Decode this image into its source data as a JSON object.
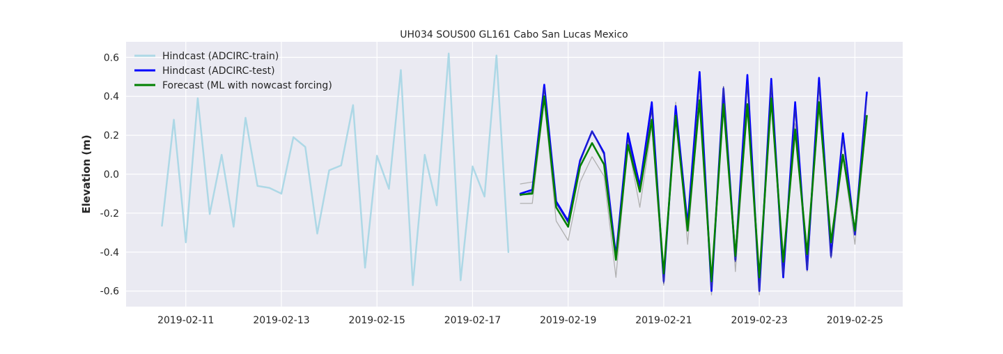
{
  "chart_data": {
    "type": "line",
    "title": "UH034 SOUS00 GL161 Cabo San Lucas Mexico",
    "xlabel": "",
    "ylabel": "Elevation (m)",
    "xlim": [
      "2019-02-09T18:00",
      "2019-02-26T00:00"
    ],
    "ylim": [
      -0.68,
      0.68
    ],
    "grid": true,
    "legend_position": "top-left",
    "x_ticks": [
      "2019-02-11",
      "2019-02-13",
      "2019-02-15",
      "2019-02-17",
      "2019-02-19",
      "2019-02-21",
      "2019-02-23",
      "2019-02-25"
    ],
    "y_ticks": [
      -0.6,
      -0.4,
      -0.2,
      0.0,
      0.2,
      0.4,
      0.6
    ],
    "series": [
      {
        "name": "",
        "color": "#b0b0b0",
        "kind": "observed",
        "x": [
          "2019-02-18T00:00",
          "2019-02-18T06:00",
          "2019-02-18T12:00",
          "2019-02-18T18:00",
          "2019-02-19T00:00",
          "2019-02-19T06:00",
          "2019-02-19T12:00",
          "2019-02-19T18:00",
          "2019-02-20T00:00",
          "2019-02-20T06:00",
          "2019-02-20T12:00",
          "2019-02-20T18:00",
          "2019-02-21T00:00",
          "2019-02-21T06:00",
          "2019-02-21T12:00",
          "2019-02-21T18:00",
          "2019-02-22T00:00",
          "2019-02-22T06:00",
          "2019-02-22T12:00",
          "2019-02-22T18:00",
          "2019-02-23T00:00",
          "2019-02-23T06:00",
          "2019-02-23T12:00",
          "2019-02-23T18:00",
          "2019-02-24T00:00",
          "2019-02-24T06:00",
          "2019-02-24T12:00",
          "2019-02-24T18:00",
          "2019-02-25T00:00",
          "2019-02-25T06:00"
        ],
        "values": [
          -0.15,
          -0.15,
          0.38,
          -0.24,
          -0.34,
          -0.04,
          0.09,
          -0.01,
          -0.53,
          0.16,
          -0.17,
          0.25,
          -0.57,
          0.37,
          -0.36,
          0.4,
          -0.62,
          0.45,
          -0.5,
          0.36,
          -0.62,
          0.4,
          -0.53,
          0.26,
          -0.5,
          0.37,
          -0.43,
          0.1,
          -0.36,
          0.3
        ]
      },
      {
        "name": "",
        "color": "#b0b0b0",
        "kind": "observed",
        "x": [
          "2019-02-18T00:00",
          "2019-02-18T06:00"
        ],
        "values": [
          -0.05,
          -0.04
        ]
      },
      {
        "name": "Hindcast (ADCIRC-train)",
        "color": "#add8e6",
        "kind": "train",
        "x": [
          "2019-02-10T12:00",
          "2019-02-10T18:00",
          "2019-02-11T00:00",
          "2019-02-11T06:00",
          "2019-02-11T12:00",
          "2019-02-11T18:00",
          "2019-02-12T00:00",
          "2019-02-12T06:00",
          "2019-02-12T12:00",
          "2019-02-12T18:00",
          "2019-02-13T00:00",
          "2019-02-13T06:00",
          "2019-02-13T12:00",
          "2019-02-13T18:00",
          "2019-02-14T00:00",
          "2019-02-14T06:00",
          "2019-02-14T12:00",
          "2019-02-14T18:00",
          "2019-02-15T00:00",
          "2019-02-15T06:00",
          "2019-02-15T12:00",
          "2019-02-15T18:00",
          "2019-02-16T00:00",
          "2019-02-16T06:00",
          "2019-02-16T12:00",
          "2019-02-16T18:00",
          "2019-02-17T00:00",
          "2019-02-17T06:00",
          "2019-02-17T12:00",
          "2019-02-17T18:00"
        ],
        "values": [
          -0.265,
          0.28,
          -0.35,
          0.39,
          -0.205,
          0.1,
          -0.27,
          0.29,
          -0.06,
          -0.07,
          -0.1,
          0.19,
          0.14,
          -0.305,
          0.02,
          0.045,
          0.355,
          -0.48,
          0.095,
          -0.075,
          0.535,
          -0.57,
          0.1,
          -0.16,
          0.62,
          -0.545,
          0.04,
          -0.115,
          0.61,
          -0.4
        ]
      },
      {
        "name": "Hindcast (ADCIRC-test)",
        "color": "#0000ff",
        "kind": "test",
        "x": [
          "2019-02-18T00:00",
          "2019-02-18T06:00",
          "2019-02-18T12:00",
          "2019-02-18T18:00",
          "2019-02-19T00:00",
          "2019-02-19T06:00",
          "2019-02-19T12:00",
          "2019-02-19T18:00",
          "2019-02-20T00:00",
          "2019-02-20T06:00",
          "2019-02-20T12:00",
          "2019-02-20T18:00",
          "2019-02-21T00:00",
          "2019-02-21T06:00",
          "2019-02-21T12:00",
          "2019-02-21T18:00",
          "2019-02-22T00:00",
          "2019-02-22T06:00",
          "2019-02-22T12:00",
          "2019-02-22T18:00",
          "2019-02-23T00:00",
          "2019-02-23T06:00",
          "2019-02-23T12:00",
          "2019-02-23T18:00",
          "2019-02-24T00:00",
          "2019-02-24T06:00",
          "2019-02-24T12:00",
          "2019-02-24T18:00",
          "2019-02-25T00:00",
          "2019-02-25T06:00"
        ],
        "values": [
          -0.1,
          -0.08,
          0.46,
          -0.14,
          -0.24,
          0.07,
          0.22,
          0.11,
          -0.42,
          0.21,
          -0.06,
          0.37,
          -0.55,
          0.35,
          -0.26,
          0.525,
          -0.6,
          0.44,
          -0.44,
          0.51,
          -0.6,
          0.49,
          -0.53,
          0.37,
          -0.49,
          0.495,
          -0.42,
          0.21,
          -0.31,
          0.42
        ]
      },
      {
        "name": "",
        "color": "#3333aa",
        "kind": "test-thin",
        "x": [
          "2019-02-18T00:00",
          "2019-02-18T06:00",
          "2019-02-18T12:00",
          "2019-02-18T18:00",
          "2019-02-19T00:00",
          "2019-02-19T06:00",
          "2019-02-19T12:00",
          "2019-02-19T18:00",
          "2019-02-20T00:00",
          "2019-02-20T06:00",
          "2019-02-20T12:00",
          "2019-02-20T18:00",
          "2019-02-21T00:00",
          "2019-02-21T06:00",
          "2019-02-21T12:00",
          "2019-02-21T18:00",
          "2019-02-22T00:00",
          "2019-02-22T06:00",
          "2019-02-22T12:00",
          "2019-02-22T18:00",
          "2019-02-23T00:00",
          "2019-02-23T06:00",
          "2019-02-23T12:00",
          "2019-02-23T18:00",
          "2019-02-24T00:00",
          "2019-02-24T06:00",
          "2019-02-24T12:00",
          "2019-02-24T18:00",
          "2019-02-25T00:00",
          "2019-02-25T06:00"
        ],
        "values": [
          -0.11,
          -0.09,
          0.44,
          -0.15,
          -0.25,
          0.06,
          0.22,
          0.1,
          -0.43,
          0.18,
          -0.08,
          0.33,
          -0.56,
          0.31,
          -0.28,
          0.47,
          -0.59,
          0.45,
          -0.45,
          0.46,
          -0.6,
          0.46,
          -0.52,
          0.33,
          -0.49,
          0.46,
          -0.43,
          0.18,
          -0.31,
          0.4
        ]
      },
      {
        "name": "Forecast (ML with nowcast forcing)",
        "color": "#008000",
        "kind": "forecast",
        "x": [
          "2019-02-18T00:00",
          "2019-02-18T06:00",
          "2019-02-18T12:00",
          "2019-02-18T18:00",
          "2019-02-19T00:00",
          "2019-02-19T06:00",
          "2019-02-19T12:00",
          "2019-02-19T18:00",
          "2019-02-20T00:00",
          "2019-02-20T06:00",
          "2019-02-20T12:00",
          "2019-02-20T18:00",
          "2019-02-21T00:00",
          "2019-02-21T06:00",
          "2019-02-21T12:00",
          "2019-02-21T18:00",
          "2019-02-22T00:00",
          "2019-02-22T06:00",
          "2019-02-22T12:00",
          "2019-02-22T18:00",
          "2019-02-23T00:00",
          "2019-02-23T06:00",
          "2019-02-23T12:00",
          "2019-02-23T18:00",
          "2019-02-24T00:00",
          "2019-02-24T06:00",
          "2019-02-24T12:00",
          "2019-02-24T18:00",
          "2019-02-25T00:00",
          "2019-02-25T06:00"
        ],
        "values": [
          -0.105,
          -0.1,
          0.4,
          -0.17,
          -0.27,
          0.04,
          0.16,
          0.05,
          -0.44,
          0.15,
          -0.09,
          0.28,
          -0.51,
          0.3,
          -0.29,
          0.38,
          -0.55,
          0.36,
          -0.42,
          0.36,
          -0.53,
          0.39,
          -0.45,
          0.23,
          -0.41,
          0.37,
          -0.35,
          0.1,
          -0.29,
          0.3
        ]
      }
    ]
  }
}
